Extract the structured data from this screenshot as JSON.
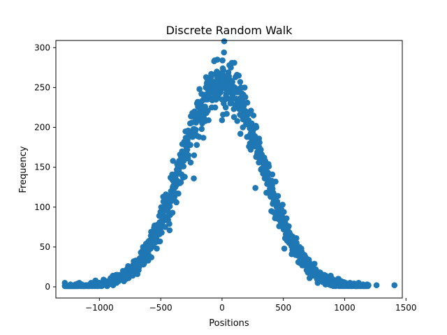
{
  "chart_data": {
    "type": "scatter",
    "title": "Discrete Random Walk",
    "xlabel": "Positions",
    "ylabel": "Frequency",
    "xlim": [
      -1355,
      1470
    ],
    "ylim": [
      -14,
      309
    ],
    "xticks": [
      -1000,
      -500,
      0,
      500,
      1000,
      1500
    ],
    "xtick_labels": [
      "−1000",
      "−500",
      "0",
      "500",
      "1000",
      "1500"
    ],
    "yticks": [
      0,
      50,
      100,
      150,
      200,
      250,
      300
    ],
    "ytick_labels": [
      "0",
      "50",
      "100",
      "150",
      "200",
      "250",
      "300"
    ],
    "grid": false,
    "legend": "none",
    "series": [
      {
        "color": "#1f77b4",
        "distribution": {
          "shape": "gaussian",
          "center": 0,
          "peak_frequency": 255,
          "std_dev": 330,
          "x_min": -1282,
          "x_max": 1194,
          "x_step": 2
        },
        "points": [
          {
            "x": -1282,
            "y": 1
          },
          {
            "x": -1236,
            "y": 3
          },
          {
            "x": -1150,
            "y": 2
          },
          {
            "x": -1000,
            "y": 3
          },
          {
            "x": -900,
            "y": 6
          },
          {
            "x": -800,
            "y": 14
          },
          {
            "x": -700,
            "y": 28
          },
          {
            "x": -600,
            "y": 45
          },
          {
            "x": -500,
            "y": 80
          },
          {
            "x": -400,
            "y": 125
          },
          {
            "x": -300,
            "y": 170
          },
          {
            "x": -200,
            "y": 215
          },
          {
            "x": -100,
            "y": 245
          },
          {
            "x": 0,
            "y": 255
          },
          {
            "x": 16,
            "y": 294
          },
          {
            "x": 0,
            "y": 209
          },
          {
            "x": 100,
            "y": 245
          },
          {
            "x": 200,
            "y": 210
          },
          {
            "x": 300,
            "y": 165
          },
          {
            "x": 400,
            "y": 115
          },
          {
            "x": 500,
            "y": 75
          },
          {
            "x": 600,
            "y": 40
          },
          {
            "x": 700,
            "y": 20
          },
          {
            "x": 800,
            "y": 8
          },
          {
            "x": 900,
            "y": 3
          },
          {
            "x": 1000,
            "y": 2
          },
          {
            "x": 1100,
            "y": 1
          },
          {
            "x": 1260,
            "y": 2
          },
          {
            "x": 1406,
            "y": 2
          }
        ]
      }
    ]
  }
}
